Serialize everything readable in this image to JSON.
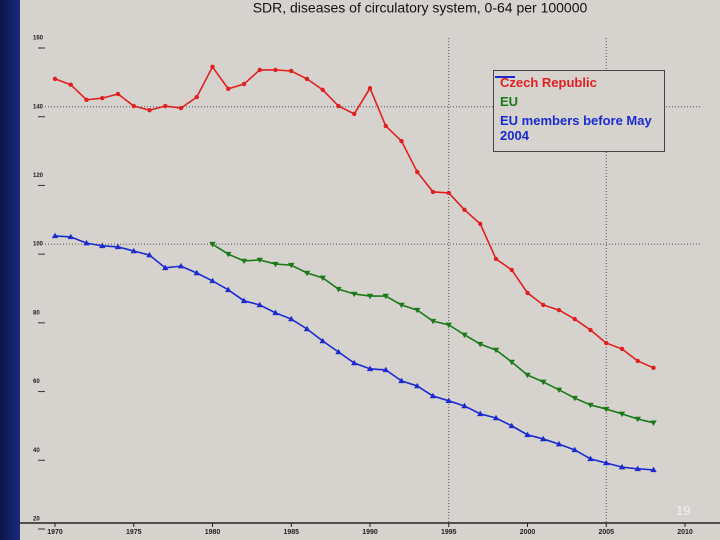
{
  "chart_data": {
    "type": "line",
    "title": "SDR, diseases of circulatory system, 0-64 per 100000",
    "x": [
      1970,
      1971,
      1972,
      1973,
      1974,
      1975,
      1976,
      1977,
      1978,
      1979,
      1980,
      1981,
      1982,
      1983,
      1984,
      1985,
      1986,
      1987,
      1988,
      1989,
      1990,
      1991,
      1992,
      1993,
      1994,
      1995,
      1996,
      1997,
      1998,
      1999,
      2000,
      2001,
      2002,
      2003,
      2004,
      2005,
      2006,
      2007,
      2008
    ],
    "series": [
      {
        "name": "Czech Republic",
        "color": "#e02020",
        "marker": "circle",
        "values": [
          148.1,
          146.4,
          142.0,
          142.5,
          143.7,
          140.2,
          139.0,
          140.2,
          139.6,
          142.8,
          151.6,
          145.2,
          146.6,
          150.7,
          150.7,
          150.4,
          148.1,
          144.9,
          140.2,
          137.9,
          145.4,
          134.4,
          130.0,
          121.0,
          115.2,
          114.9,
          110.0,
          105.9,
          95.7,
          92.5,
          85.8,
          82.3,
          80.8,
          78.2,
          75.0,
          71.2,
          69.5,
          66.0,
          64.0
        ]
      },
      {
        "name": "EU",
        "color": "#1a7a1a",
        "marker": "triangle-down",
        "values": [
          null,
          null,
          null,
          null,
          null,
          null,
          null,
          null,
          null,
          null,
          100.0,
          97.1,
          95.1,
          95.4,
          94.2,
          93.9,
          91.6,
          90.2,
          86.9,
          85.5,
          84.9,
          84.9,
          82.3,
          80.8,
          77.6,
          76.5,
          73.6,
          70.9,
          69.2,
          65.7,
          61.9,
          59.9,
          57.6,
          55.2,
          53.2,
          52.0,
          50.6,
          49.1,
          48.0
        ]
      },
      {
        "name": "EU members before May 2004",
        "color": "#1a2ad0",
        "marker": "triangle-up",
        "values": [
          102.4,
          102.1,
          100.3,
          99.5,
          99.2,
          98.0,
          96.8,
          93.1,
          93.6,
          91.6,
          89.3,
          86.7,
          83.5,
          82.3,
          80.0,
          78.2,
          75.3,
          71.8,
          68.6,
          65.4,
          63.7,
          63.4,
          60.2,
          58.7,
          55.8,
          54.4,
          52.9,
          50.6,
          49.4,
          47.1,
          44.5,
          43.3,
          41.8,
          40.1,
          37.5,
          36.3,
          35.1,
          34.6,
          34.3
        ]
      }
    ],
    "xlim": [
      1970,
      2010
    ],
    "xticks": [
      1970,
      1975,
      1980,
      1985,
      1990,
      1995,
      2000,
      2005,
      2010
    ],
    "ylim": [
      20,
      160
    ],
    "yticks": [
      20,
      40,
      60,
      80,
      100,
      120,
      140,
      160
    ],
    "xgrid": [
      1995,
      2005
    ],
    "ygrid": [
      100,
      140
    ]
  },
  "page_number": "19"
}
